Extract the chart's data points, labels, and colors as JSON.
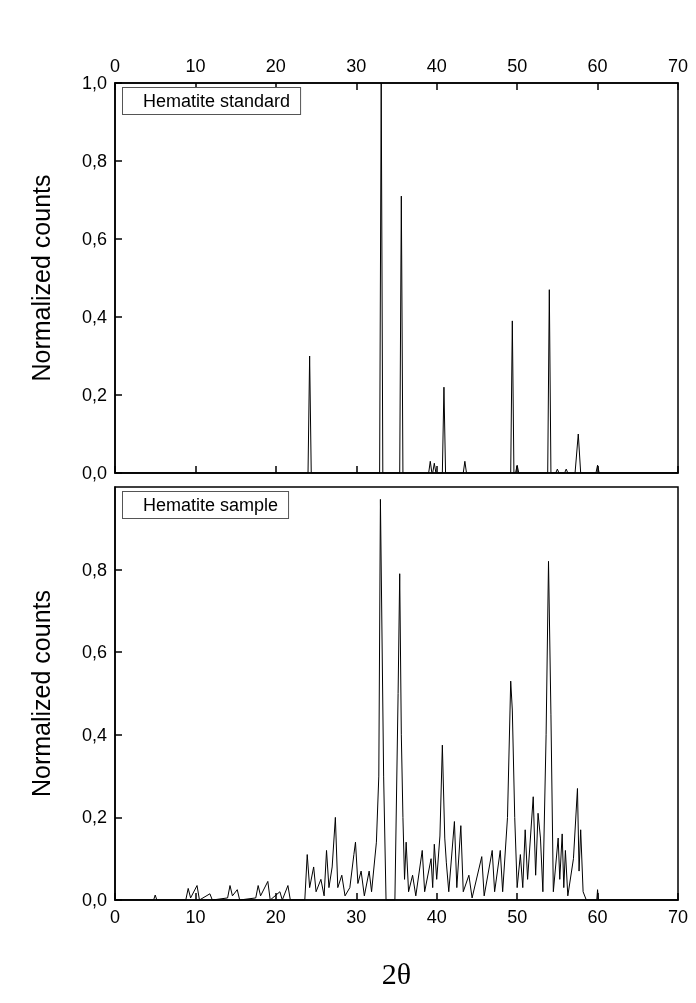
{
  "chart_data": [
    {
      "type": "line",
      "ylabel": "Normalized counts",
      "annotations": [
        "Hematite standard"
      ],
      "marker": "none",
      "tick_labels": "y",
      "xlim": [
        0,
        70
      ],
      "x2lim": [
        0,
        70
      ],
      "x2ticks": [
        0,
        10,
        20,
        30,
        40,
        50,
        60,
        70
      ],
      "ylim": [
        0,
        1
      ],
      "yticks": [
        {
          "value": 0,
          "label": "0,0"
        },
        {
          "value": 0.2,
          "label": "0,2"
        },
        {
          "value": 0.4,
          "label": "0,4"
        },
        {
          "value": 0.6,
          "label": "0,6"
        },
        {
          "value": 0.8,
          "label": "0,8"
        },
        {
          "value": 1,
          "label": "1,0"
        }
      ],
      "series": [
        {
          "color": "#000000",
          "x": [
            0,
            24.0,
            24.2,
            24.4,
            32.9,
            33.1,
            33.3,
            35.4,
            35.6,
            35.8,
            39.0,
            39.2,
            39.4,
            39.5,
            39.7,
            39.9,
            40.7,
            40.9,
            41.1,
            43.3,
            43.5,
            43.7,
            49.2,
            49.4,
            49.6,
            49.8,
            50.0,
            50.2,
            53.8,
            54.0,
            54.2,
            54.8,
            55.0,
            55.2,
            55.9,
            56.1,
            56.3,
            57.2,
            57.6,
            57.9,
            59.8,
            60.0,
            60.2,
            70
          ],
          "values": [
            0,
            0,
            0.3,
            0,
            0,
            1.0,
            0,
            0,
            0.71,
            0,
            0,
            0.03,
            0,
            0,
            0.025,
            0,
            0,
            0.22,
            0,
            0,
            0.03,
            0,
            0,
            0.39,
            0,
            0,
            0.02,
            0,
            0,
            0.47,
            0,
            0,
            0.01,
            0,
            0,
            0.01,
            0,
            0,
            0.1,
            0,
            0,
            0.02,
            0,
            0
          ]
        }
      ]
    },
    {
      "type": "line",
      "xlabel": "2θ",
      "ylabel": "Normalized counts",
      "annotations": [
        "Hematite sample"
      ],
      "marker": "none",
      "xlim": [
        0,
        70
      ],
      "xticks": [
        0,
        10,
        20,
        30,
        40,
        50,
        60,
        70
      ],
      "ylim": [
        0,
        1
      ],
      "yticks": [
        {
          "value": 0,
          "label": "0,0"
        },
        {
          "value": 0.2,
          "label": "0,2"
        },
        {
          "value": 0.4,
          "label": "0,4"
        },
        {
          "value": 0.6,
          "label": "0,6"
        },
        {
          "value": 0.8,
          "label": "0,8"
        }
      ],
      "series": [
        {
          "color": "#000000",
          "x": [
            0,
            4.8,
            5.0,
            5.2,
            8.8,
            9.1,
            9.4,
            10.2,
            10.5,
            11.8,
            12.1,
            14.0,
            14.3,
            14.6,
            15.2,
            15.5,
            17.5,
            17.8,
            18.1,
            19.0,
            19.3,
            20.5,
            20.8,
            21.5,
            21.8,
            23.6,
            23.9,
            24.2,
            24.7,
            25.0,
            25.6,
            26.0,
            26.3,
            26.6,
            27.0,
            27.4,
            27.7,
            28.2,
            28.6,
            29.2,
            29.7,
            29.9,
            30.2,
            30.6,
            31.0,
            31.6,
            31.9,
            32.5,
            32.8,
            33.0,
            33.4,
            33.7,
            34.8,
            35.2,
            35.4,
            35.6,
            35.8,
            36.0,
            36.2,
            36.5,
            37.0,
            37.4,
            38.2,
            38.5,
            39.3,
            39.5,
            39.7,
            40.0,
            40.4,
            40.7,
            41.0,
            41.2,
            41.5,
            42.2,
            42.5,
            43.0,
            43.3,
            44.0,
            44.4,
            45.6,
            45.9,
            46.9,
            47.2,
            47.9,
            48.2,
            48.8,
            49.2,
            49.4,
            49.7,
            50.0,
            50.4,
            50.7,
            51.0,
            51.3,
            52.0,
            52.3,
            52.6,
            52.9,
            53.2,
            53.6,
            53.9,
            54.2,
            54.5,
            55.1,
            55.3,
            55.6,
            55.8,
            56.0,
            56.3,
            57.0,
            57.5,
            57.7,
            57.9,
            58.2,
            58.6,
            59.9,
            60.0,
            60.1,
            70
          ],
          "values": [
            0,
            0,
            0.012,
            0,
            0,
            0.028,
            0.005,
            0.035,
            0,
            0.015,
            0,
            0.005,
            0.035,
            0.01,
            0.025,
            0,
            0.005,
            0.035,
            0.01,
            0.045,
            0,
            0.02,
            0,
            0.035,
            0,
            0,
            0.11,
            0.03,
            0.08,
            0.02,
            0.05,
            0.01,
            0.12,
            0.03,
            0.08,
            0.2,
            0.03,
            0.06,
            0.01,
            0.03,
            0.11,
            0.14,
            0.04,
            0.07,
            0.01,
            0.07,
            0.02,
            0.14,
            0.3,
            0.97,
            0.3,
            0,
            0,
            0.5,
            0.79,
            0.4,
            0.2,
            0.05,
            0.14,
            0.02,
            0.06,
            0.01,
            0.12,
            0.02,
            0.1,
            0.03,
            0.135,
            0.05,
            0.155,
            0.375,
            0.15,
            0.09,
            0.02,
            0.19,
            0.03,
            0.18,
            0.02,
            0.06,
            0.005,
            0.105,
            0.01,
            0.12,
            0.02,
            0.12,
            0.02,
            0.2,
            0.53,
            0.46,
            0.2,
            0.03,
            0.11,
            0.03,
            0.17,
            0.05,
            0.25,
            0.06,
            0.21,
            0.15,
            0.02,
            0.4,
            0.82,
            0.45,
            0.02,
            0.15,
            0.05,
            0.16,
            0.03,
            0.12,
            0.01,
            0.1,
            0.27,
            0.07,
            0.17,
            0.02,
            0,
            0,
            0.025,
            0,
            0
          ]
        }
      ]
    }
  ]
}
